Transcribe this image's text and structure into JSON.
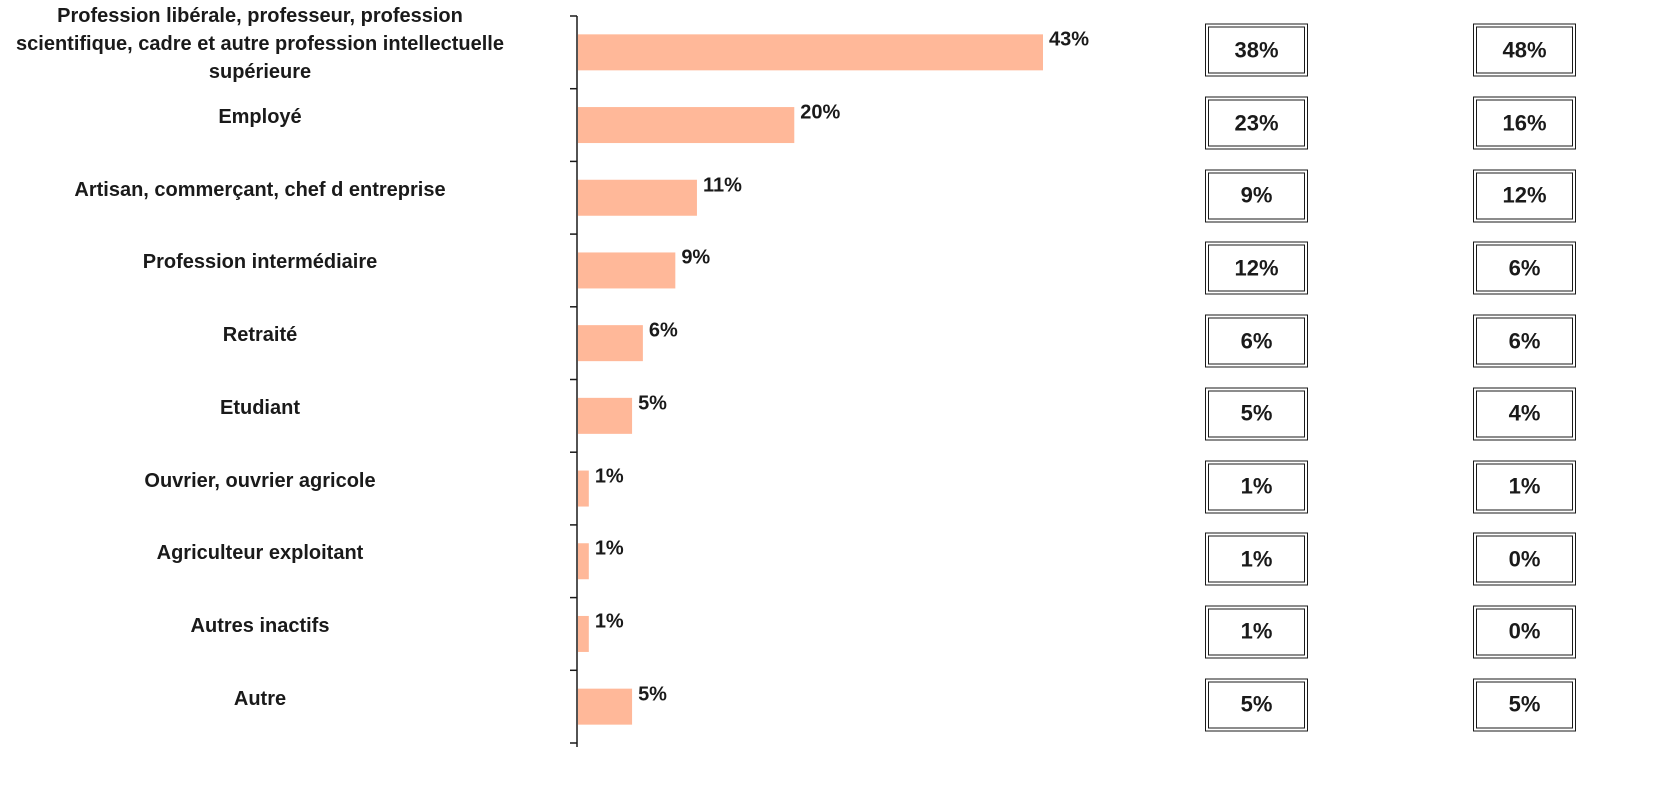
{
  "chart_data": {
    "type": "bar",
    "orientation": "horizontal",
    "categories": [
      "Profession libérale, professeur, profession\nscientifique, cadre et autre profession intellectuelle\nsupérieure",
      "Employé",
      "Artisan, commerçant, chef d entreprise",
      "Profession intermédiaire",
      "Retraité",
      "Etudiant",
      "Ouvrier, ouvrier agricole",
      "Agriculteur exploitant",
      "Autres inactifs",
      "Autre"
    ],
    "values": [
      43,
      20,
      11,
      9,
      6,
      5,
      1,
      1,
      1,
      5
    ],
    "value_labels": [
      "43%",
      "20%",
      "11%",
      "9%",
      "6%",
      "5%",
      "1%",
      "1%",
      "1%",
      "5%"
    ],
    "bar_color": "#ffb899",
    "comparison_columns": [
      {
        "values": [
          "38%",
          "23%",
          "9%",
          "12%",
          "6%",
          "5%",
          "1%",
          "1%",
          "1%",
          "5%"
        ]
      },
      {
        "values": [
          "48%",
          "16%",
          "12%",
          "6%",
          "6%",
          "4%",
          "1%",
          "0%",
          "0%",
          "5%"
        ]
      }
    ],
    "title": "",
    "xlabel": "",
    "ylabel": "",
    "xlim": [
      0,
      50
    ],
    "grid": false
  }
}
